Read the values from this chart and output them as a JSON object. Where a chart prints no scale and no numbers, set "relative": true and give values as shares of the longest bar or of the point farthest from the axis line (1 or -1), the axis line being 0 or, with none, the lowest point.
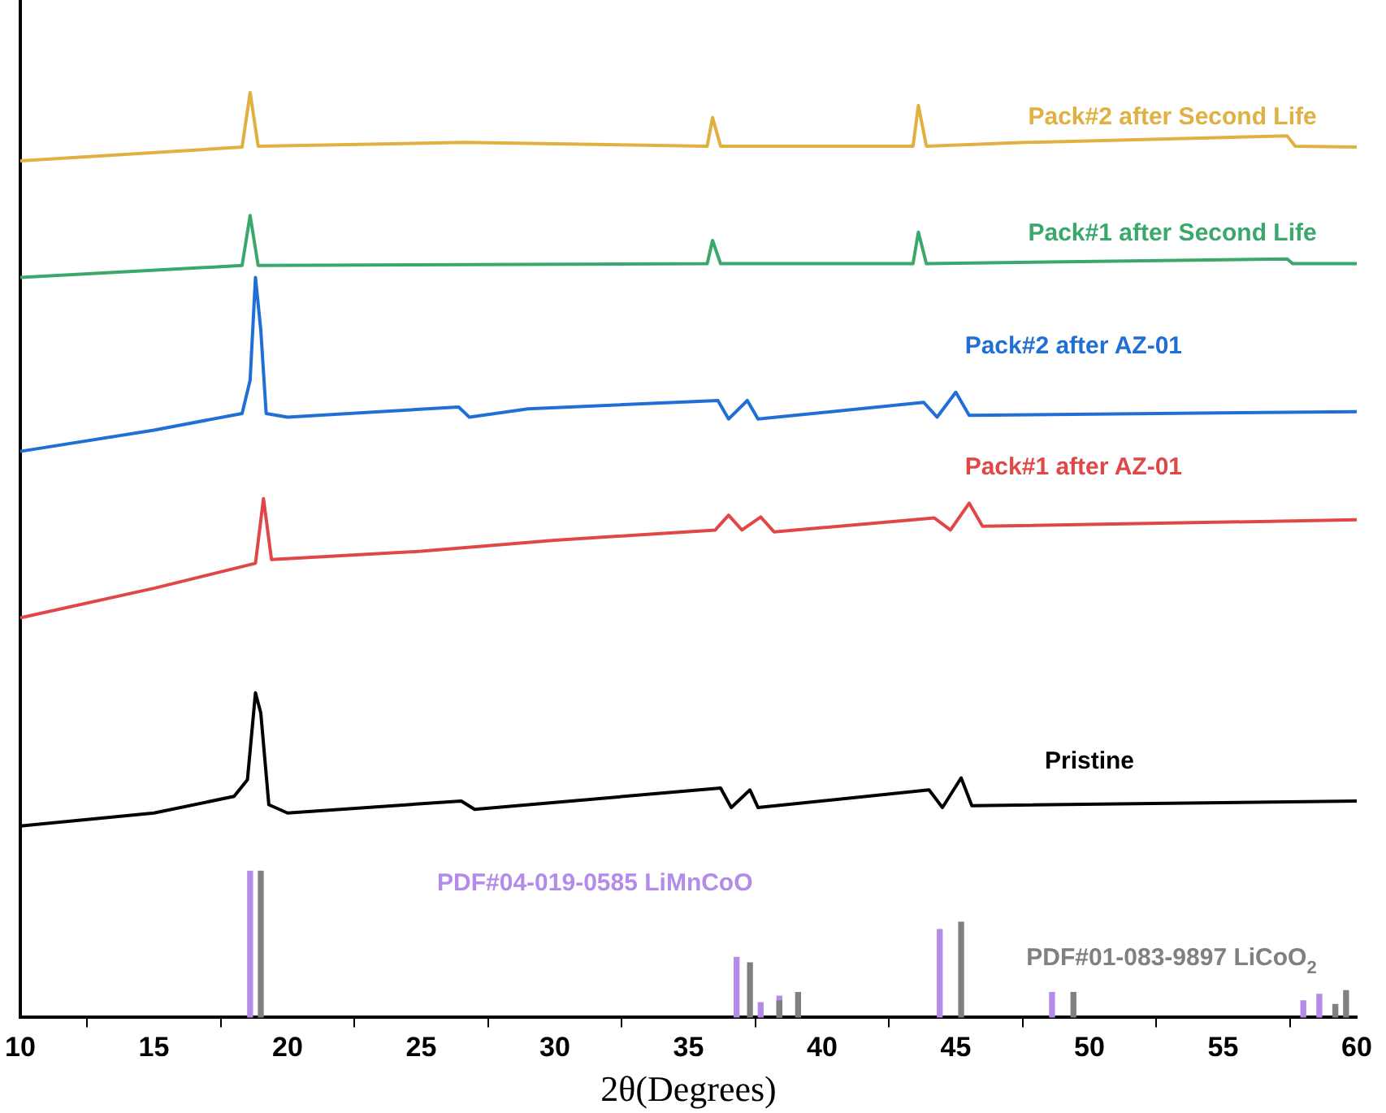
{
  "chart_data": {
    "type": "line",
    "relative": true,
    "xlabel": "2θ(Degrees)",
    "xlim": [
      10,
      60
    ],
    "xticks": [
      10,
      15,
      20,
      25,
      30,
      35,
      40,
      45,
      50,
      55,
      60
    ],
    "tick_labels": "x",
    "grid": false,
    "legend": false,
    "marker": "none",
    "line_style": "solid",
    "series": [
      {
        "name": "Pack#2 after Second Life",
        "color": "#e0b040",
        "x": [
          10,
          18.3,
          18.6,
          18.9,
          26.6,
          35.7,
          35.9,
          36.2,
          43.4,
          43.6,
          43.9,
          47.6,
          57.4,
          57.7,
          60
        ],
        "values": [
          0.926,
          0.941,
          1.0,
          0.942,
          0.946,
          0.942,
          0.973,
          0.942,
          0.942,
          0.986,
          0.942,
          0.946,
          0.953,
          0.942,
          0.941
        ]
      },
      {
        "name": "Pack#1 after Second Life",
        "color": "#3aa86a",
        "x": [
          10,
          18.3,
          18.6,
          18.9,
          35.7,
          35.9,
          36.2,
          43.4,
          43.6,
          43.9,
          57.4,
          57.6,
          60
        ],
        "values": [
          0.8,
          0.813,
          0.867,
          0.813,
          0.815,
          0.84,
          0.815,
          0.815,
          0.849,
          0.815,
          0.82,
          0.815,
          0.815
        ]
      },
      {
        "name": "Pack#2 after AZ-01",
        "color": "#1f6fd6",
        "x": [
          10,
          15,
          18.3,
          18.6,
          18.8,
          19.0,
          19.2,
          20,
          26.4,
          26.8,
          29,
          36.1,
          36.5,
          37.2,
          37.6,
          43.8,
          44.3,
          45.0,
          45.5,
          60
        ],
        "values": [
          0.612,
          0.635,
          0.653,
          0.689,
          0.8,
          0.743,
          0.653,
          0.649,
          0.66,
          0.649,
          0.658,
          0.667,
          0.647,
          0.667,
          0.647,
          0.665,
          0.649,
          0.676,
          0.651,
          0.655
        ]
      },
      {
        "name": "Pack#1 after AZ-01",
        "color": "#e04848",
        "x": [
          10,
          15,
          18.8,
          19.1,
          19.4,
          25,
          30,
          36,
          36.5,
          37,
          37.7,
          38.2,
          44.2,
          44.8,
          45.5,
          46,
          60
        ],
        "values": [
          0.432,
          0.464,
          0.491,
          0.561,
          0.495,
          0.504,
          0.516,
          0.527,
          0.543,
          0.527,
          0.541,
          0.525,
          0.54,
          0.527,
          0.556,
          0.531,
          0.538
        ]
      },
      {
        "name": "Pristine",
        "color": "#000000",
        "x": [
          10,
          15,
          18,
          18.5,
          18.8,
          19.0,
          19.3,
          20,
          26.5,
          27,
          36.2,
          36.6,
          37.3,
          37.6,
          44,
          44.5,
          45.2,
          45.6,
          60
        ],
        "values": [
          0.207,
          0.221,
          0.239,
          0.257,
          0.351,
          0.329,
          0.23,
          0.221,
          0.234,
          0.225,
          0.248,
          0.227,
          0.246,
          0.227,
          0.246,
          0.227,
          0.259,
          0.229,
          0.234
        ]
      },
      {
        "name": "PDF#04-019-0585 LiMnCoO",
        "type": "bar",
        "color": "#b48be8",
        "x": [
          18.6,
          36.8,
          37.7,
          38.4,
          44.4,
          48.6,
          58.0,
          58.6
        ],
        "values": [
          0.158,
          0.065,
          0.016,
          0.023,
          0.095,
          0.027,
          0.018,
          0.025
        ]
      },
      {
        "name": "PDF#01-083-9897 LiCoO$_{2}$",
        "type": "bar",
        "color": "#808080",
        "x": [
          19.0,
          37.3,
          38.4,
          39.1,
          45.2,
          49.4,
          59.2,
          59.6
        ],
        "values": [
          0.158,
          0.059,
          0.018,
          0.027,
          0.103,
          0.027,
          0.014,
          0.029
        ]
      }
    ]
  }
}
